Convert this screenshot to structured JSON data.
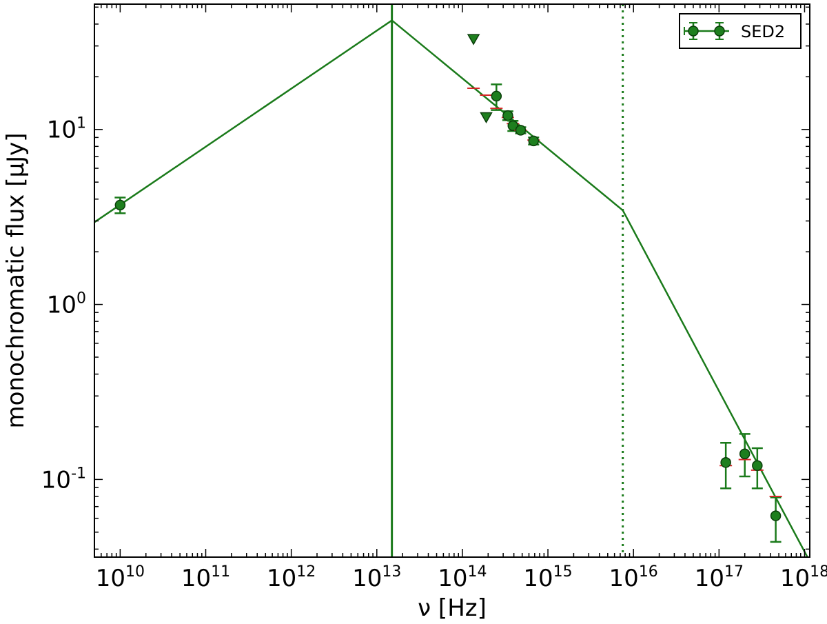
{
  "chart_data": {
    "type": "scatter",
    "title": "",
    "xlabel": "ν [Hz]",
    "ylabel": "monochromatic flux [μJy]",
    "xscale": "log",
    "yscale": "log",
    "xlim": [
      5000000000.0,
      1.15e+18
    ],
    "ylim": [
      0.036,
      52
    ],
    "grid": false,
    "legend_position": "top-right",
    "colors": {
      "series": "#1a7a1a",
      "marker": "#1e7f1e",
      "model_marker": "#d62728"
    },
    "x_ticks": [
      {
        "value": 10000000000.0,
        "base": "10",
        "exp": "10"
      },
      {
        "value": 100000000000.0,
        "base": "10",
        "exp": "11"
      },
      {
        "value": 1000000000000.0,
        "base": "10",
        "exp": "12"
      },
      {
        "value": 10000000000000.0,
        "base": "10",
        "exp": "13"
      },
      {
        "value": 100000000000000.0,
        "base": "10",
        "exp": "14"
      },
      {
        "value": 1000000000000000.0,
        "base": "10",
        "exp": "15"
      },
      {
        "value": 1e+16,
        "base": "10",
        "exp": "16"
      },
      {
        "value": 1e+17,
        "base": "10",
        "exp": "17"
      },
      {
        "value": 1e+18,
        "base": "10",
        "exp": "18"
      }
    ],
    "y_ticks": [
      {
        "value": 0.1,
        "base": "10",
        "exp": "-1"
      },
      {
        "value": 1,
        "base": "10",
        "exp": "0"
      },
      {
        "value": 10,
        "base": "10",
        "exp": "1"
      }
    ],
    "model_line": {
      "name": "SED2 model",
      "x": [
        5000000000.0,
        15000000000000.0,
        7500000000000000.0,
        1.15e+18
      ],
      "y": [
        2.95,
        42.0,
        3.45,
        0.034
      ]
    },
    "vertical_lines": [
      {
        "x": 15000000000000.0,
        "style": "solid"
      },
      {
        "x": 7500000000000000.0,
        "style": "dotted"
      }
    ],
    "series": [
      {
        "name": "SED2",
        "points": [
          {
            "x": 10000000000.0,
            "y": 3.7,
            "yerr": [
              0.38,
              0.38
            ]
          },
          {
            "x": 250000000000000.0,
            "y": 15.5,
            "yerr": [
              2.6,
              2.6
            ],
            "model": 13.2
          },
          {
            "x": 340000000000000.0,
            "y": 12.0,
            "yerr": [
              0.7,
              0.7
            ],
            "model": 11.7
          },
          {
            "x": 390000000000000.0,
            "y": 10.5,
            "yerr": [
              0.7,
              0.7
            ],
            "model": 10.8
          },
          {
            "x": 480000000000000.0,
            "y": 9.9,
            "yerr": [
              0.4,
              0.4
            ],
            "model": 9.9
          },
          {
            "x": 680000000000000.0,
            "y": 8.6,
            "yerr": [
              0.4,
              0.4
            ],
            "model": 8.7
          },
          {
            "x": 1.2e+17,
            "y": 0.125,
            "yerr": [
              0.036,
              0.037
            ],
            "model": 0.12
          },
          {
            "x": 2e+17,
            "y": 0.14,
            "yerr": [
              0.036,
              0.042
            ],
            "model": 0.13
          },
          {
            "x": 2.8e+17,
            "y": 0.12,
            "yerr": [
              0.031,
              0.031
            ],
            "model": 0.113
          },
          {
            "x": 4.6e+17,
            "y": 0.062,
            "yerr": [
              0.018,
              0.017
            ],
            "model": 0.08
          }
        ],
        "upper_limits": [
          {
            "x": 135000000000000.0,
            "y": 33.0
          },
          {
            "x": 190000000000000.0,
            "y": 11.8
          }
        ],
        "extra_model_marks": [
          {
            "x": 135000000000000.0,
            "y": 17.2
          },
          {
            "x": 190000000000000.0,
            "y": 15.7
          }
        ]
      }
    ],
    "legend": {
      "label": "SED2"
    }
  }
}
